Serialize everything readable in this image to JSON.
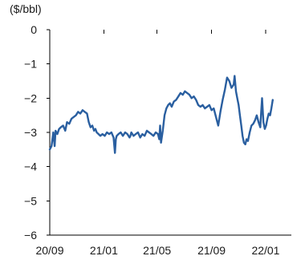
{
  "chart_data": {
    "type": "line",
    "unit_label": "($/bbl)",
    "x_tick_labels": [
      "20/09",
      "21/01",
      "21/05",
      "21/09",
      "22/01"
    ],
    "x_ticks": [
      "2020-09",
      "2021-01",
      "2021-05",
      "2021-09",
      "2022-01"
    ],
    "x_range": [
      "2020-09-01",
      "2022-02-28"
    ],
    "y_tick_labels": [
      "0",
      "−1",
      "−2",
      "−3",
      "−4",
      "−5",
      "−6"
    ],
    "y_ticks": [
      0,
      -1,
      -2,
      -3,
      -4,
      -5,
      -6
    ],
    "ylim": [
      -6,
      0
    ],
    "grid": false,
    "legend": "none",
    "series_color": "#2a5fa0",
    "series": [
      {
        "x": [
          "2020-09-01",
          "2020-09-05",
          "2020-09-09",
          "2020-09-12",
          "2020-09-14",
          "2020-09-18",
          "2020-09-22",
          "2020-09-26",
          "2020-10-01",
          "2020-10-06",
          "2020-10-10",
          "2020-10-15",
          "2020-10-20",
          "2020-10-25",
          "2020-10-30",
          "2020-11-04",
          "2020-11-09",
          "2020-11-14",
          "2020-11-19",
          "2020-11-24",
          "2020-11-28",
          "2020-12-02",
          "2020-12-06",
          "2020-12-10",
          "2020-12-13",
          "2020-12-16",
          "2020-12-20",
          "2020-12-24",
          "2020-12-29",
          "2021-01-03",
          "2021-01-08",
          "2021-01-13",
          "2021-01-18",
          "2021-01-23",
          "2021-01-26",
          "2021-01-28",
          "2021-01-30",
          "2021-02-03",
          "2021-02-08",
          "2021-02-13",
          "2021-02-18",
          "2021-02-23",
          "2021-02-28",
          "2021-03-02",
          "2021-03-04",
          "2021-03-09",
          "2021-03-14",
          "2021-03-19",
          "2021-03-24",
          "2021-03-29",
          "2021-04-03",
          "2021-04-08",
          "2021-04-13",
          "2021-04-18",
          "2021-04-23",
          "2021-04-28",
          "2021-05-03",
          "2021-05-06",
          "2021-05-08",
          "2021-05-10",
          "2021-05-14",
          "2021-05-18",
          "2021-05-22",
          "2021-05-26",
          "2021-05-30",
          "2021-06-03",
          "2021-06-08",
          "2021-06-13",
          "2021-06-18",
          "2021-06-23",
          "2021-06-28",
          "2021-07-03",
          "2021-07-08",
          "2021-07-13",
          "2021-07-18",
          "2021-07-23",
          "2021-07-28",
          "2021-08-02",
          "2021-08-07",
          "2021-08-12",
          "2021-08-17",
          "2021-08-22",
          "2021-08-27",
          "2021-09-01",
          "2021-09-06",
          "2021-09-11",
          "2021-09-16",
          "2021-09-21",
          "2021-09-26",
          "2021-10-01",
          "2021-10-06",
          "2021-10-11",
          "2021-10-16",
          "2021-10-21",
          "2021-10-23",
          "2021-10-26",
          "2021-10-29",
          "2021-11-01",
          "2021-11-04",
          "2021-11-07",
          "2021-11-10",
          "2021-11-13",
          "2021-11-16",
          "2021-11-19",
          "2021-11-22",
          "2021-11-26",
          "2021-11-30",
          "2021-12-04",
          "2021-12-08",
          "2021-12-12",
          "2021-12-16",
          "2021-12-20",
          "2021-12-22",
          "2021-12-24",
          "2021-12-27",
          "2021-12-30",
          "2022-01-02",
          "2022-01-05",
          "2022-01-08",
          "2022-01-11",
          "2022-01-14",
          "2022-01-17"
        ],
        "y": [
          -3.5,
          -3.4,
          -3.0,
          -3.4,
          -2.95,
          -3.05,
          -2.9,
          -2.85,
          -2.8,
          -2.95,
          -2.7,
          -2.75,
          -2.6,
          -2.55,
          -2.5,
          -2.4,
          -2.45,
          -2.35,
          -2.4,
          -2.45,
          -2.7,
          -2.85,
          -2.8,
          -2.95,
          -2.9,
          -3.0,
          -3.05,
          -3.1,
          -3.05,
          -3.1,
          -3.0,
          -3.05,
          -3.0,
          -3.15,
          -3.6,
          -3.2,
          -3.1,
          -3.05,
          -3.0,
          -3.1,
          -3.0,
          -3.05,
          -3.15,
          -3.1,
          -3.0,
          -3.1,
          -3.05,
          -3.0,
          -3.15,
          -3.05,
          -3.1,
          -2.95,
          -3.0,
          -3.05,
          -3.1,
          -3.0,
          -3.05,
          -3.2,
          -2.8,
          -3.3,
          -2.95,
          -2.5,
          -2.3,
          -2.2,
          -2.15,
          -2.25,
          -2.1,
          -2.05,
          -1.95,
          -1.85,
          -1.9,
          -1.8,
          -1.85,
          -1.9,
          -2.0,
          -1.95,
          -2.05,
          -2.2,
          -2.25,
          -2.2,
          -2.3,
          -2.25,
          -2.2,
          -2.35,
          -2.3,
          -2.55,
          -2.8,
          -2.4,
          -2.05,
          -1.75,
          -1.4,
          -1.5,
          -1.7,
          -1.6,
          -1.35,
          -1.8,
          -2.0,
          -2.2,
          -2.5,
          -2.8,
          -3.1,
          -3.3,
          -3.35,
          -3.2,
          -3.25,
          -3.0,
          -2.8,
          -2.75,
          -2.65,
          -2.5,
          -2.7,
          -2.85,
          -2.4,
          -2.0,
          -2.7,
          -2.9,
          -2.8,
          -2.6,
          -2.45,
          -2.5,
          -2.3,
          -2.05
        ],
        "style": "line"
      }
    ]
  }
}
